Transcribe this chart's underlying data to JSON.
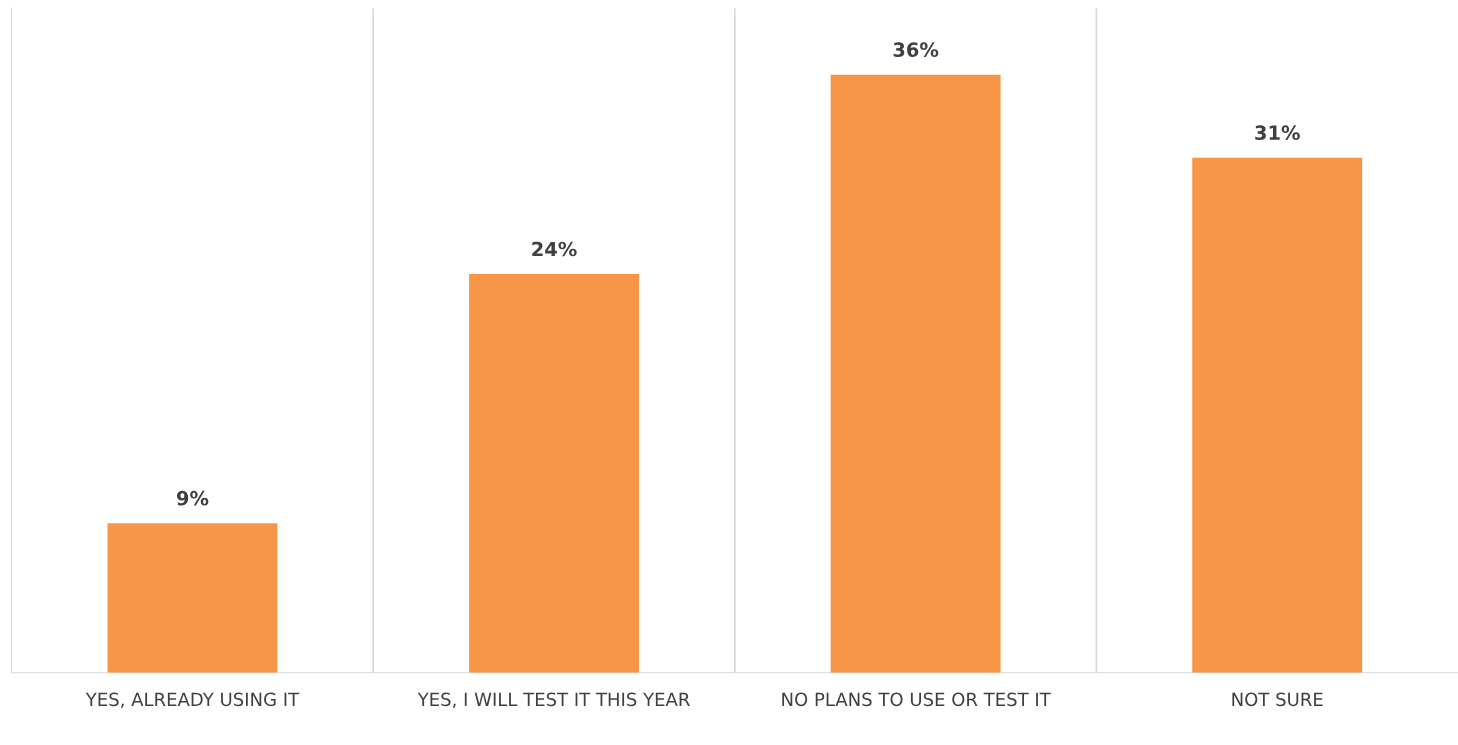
{
  "chart_data": {
    "type": "bar",
    "categories": [
      "YES, ALREADY USING IT",
      "YES, I WILL TEST IT THIS YEAR",
      "NO PLANS TO USE OR TEST IT",
      "NOT SURE"
    ],
    "values": [
      9,
      24,
      36,
      31
    ],
    "color": "#f79646",
    "value_labels": [
      "9%",
      "24%",
      "36%",
      "31%"
    ],
    "ylim": [
      0,
      40
    ],
    "grid": "x",
    "tick_labels": "x",
    "legend": false
  }
}
